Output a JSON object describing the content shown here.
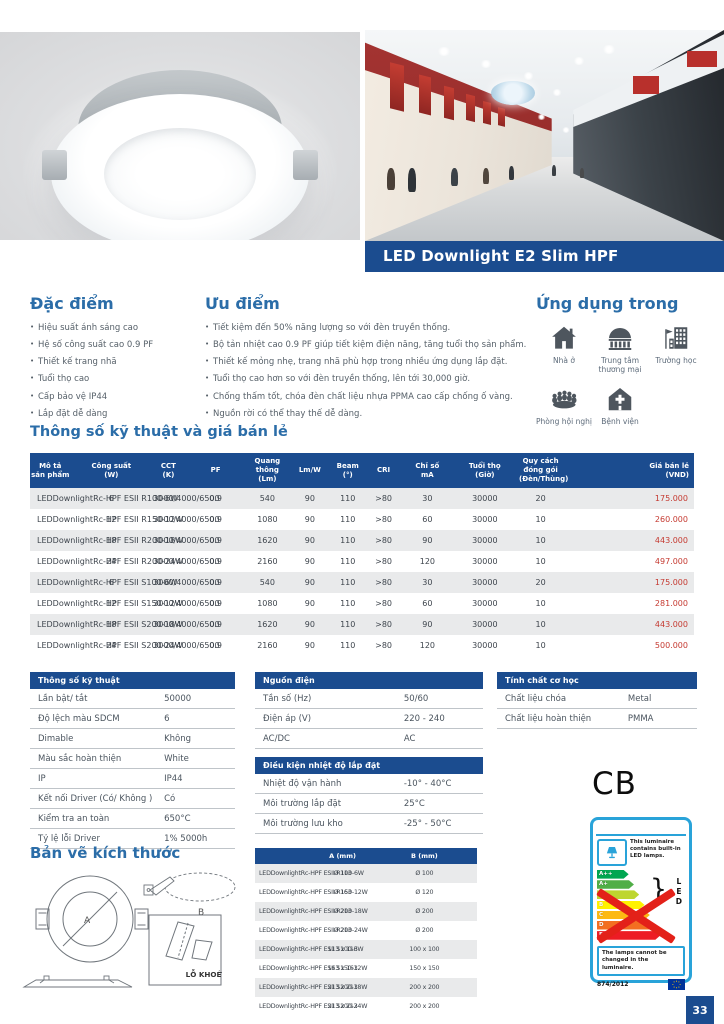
{
  "colors": {
    "navy": "#1b4c8f",
    "heading_blue": "#2b6da8",
    "price_red": "#c53a31",
    "label_blue": "#29a3d9"
  },
  "page": {
    "number": "33"
  },
  "hero": {
    "banner_title": "LED Downlight E2 Slim HPF"
  },
  "features": {
    "title": "Đặc điểm",
    "items": [
      "Hiệu suất ánh sáng cao",
      "Hệ số công suất cao 0.9 PF",
      "Thiết kế trang nhã",
      "Tuổi thọ cao",
      "Cấp bảo vệ IP44",
      "Lắp đặt dễ dàng"
    ]
  },
  "advantages": {
    "title": "Ưu điểm",
    "items": [
      "Tiết kiệm đến 50% năng lượng so với đèn truyền thống.",
      "Bộ tản nhiệt cao 0.9 PF giúp tiết kiệm điện năng, tăng tuổi thọ sản phẩm.",
      "Thiết kế mỏng nhẹ, trang nhã phù hợp trong nhiều ứng dụng lắp đặt.",
      "Tuổi thọ cao hơn so với đèn truyền thống, lên tới 30,000 giờ.",
      "Chống thấm tốt, chóa đèn chất liệu nhựa PPMA cao cấp chống ố vàng.",
      "Nguồn rời có thể thay thế dễ dàng."
    ]
  },
  "applications": {
    "title": "Ứng dụng trong",
    "items": [
      {
        "label": "Nhà ở",
        "icon": "house-icon"
      },
      {
        "label": "Trung tâm thương mại",
        "icon": "mall-icon"
      },
      {
        "label": "Trường học",
        "icon": "school-icon"
      },
      {
        "label": "Phòng hội nghị",
        "icon": "conference-icon"
      },
      {
        "label": "Bệnh viện",
        "icon": "hospital-icon"
      }
    ]
  },
  "spec_price": {
    "title": "Thông số kỹ thuật và giá bán lẻ",
    "headers": [
      "Mô tả sản phẩm",
      "Công suất\n(W)",
      "CCT\n(K)",
      "PF",
      "Quang thông\n(Lm)",
      "Lm/W",
      "Beam\n(°)",
      "CRI",
      "Chỉ số\nmA",
      "Tuổi thọ\n(Giờ)",
      "Quy cách đóng gói\n(Đèn/Thùng)",
      "Giá bán lẻ\n(VND)"
    ],
    "rows": [
      {
        "desc": "LEDDownlightRc-HPF ESII R100-6W",
        "watt": "6",
        "cct": "3000/4000/6500",
        "pf": "0.9",
        "lumen": "540",
        "lmw": "90",
        "beam": "110",
        "cri": ">80",
        "ma": "30",
        "hours": "30000",
        "pack": "20",
        "price": "175.000"
      },
      {
        "desc": "LEDDownlightRc-HPF ESII R150-12W",
        "watt": "12",
        "cct": "3000/4000/6500",
        "pf": "0.9",
        "lumen": "1080",
        "lmw": "90",
        "beam": "110",
        "cri": ">80",
        "ma": "60",
        "hours": "30000",
        "pack": "10",
        "price": "260.000"
      },
      {
        "desc": "LEDDownlightRc-HPF ESII R200-18W",
        "watt": "18",
        "cct": "3000/4000/6500",
        "pf": "0.9",
        "lumen": "1620",
        "lmw": "90",
        "beam": "110",
        "cri": ">80",
        "ma": "90",
        "hours": "30000",
        "pack": "10",
        "price": "443.000"
      },
      {
        "desc": "LEDDownlightRc-HPF ESII R200-24W",
        "watt": "24",
        "cct": "3000/4000/6500",
        "pf": "0.9",
        "lumen": "2160",
        "lmw": "90",
        "beam": "110",
        "cri": ">80",
        "ma": "120",
        "hours": "30000",
        "pack": "10",
        "price": "497.000"
      },
      {
        "desc": "LEDDownlightRc-HPF ESII S100-6W",
        "watt": "6",
        "cct": "3000/4000/6500",
        "pf": "0.9",
        "lumen": "540",
        "lmw": "90",
        "beam": "110",
        "cri": ">80",
        "ma": "30",
        "hours": "30000",
        "pack": "20",
        "price": "175.000"
      },
      {
        "desc": "LEDDownlightRc-HPF ESII S150-12W",
        "watt": "12",
        "cct": "3000/4000/6500",
        "pf": "0.9",
        "lumen": "1080",
        "lmw": "90",
        "beam": "110",
        "cri": ">80",
        "ma": "60",
        "hours": "30000",
        "pack": "10",
        "price": "281.000"
      },
      {
        "desc": "LEDDownlightRc-HPF ESII S200-18W",
        "watt": "18",
        "cct": "3000/4000/6500",
        "pf": "0.9",
        "lumen": "1620",
        "lmw": "90",
        "beam": "110",
        "cri": ">80",
        "ma": "90",
        "hours": "30000",
        "pack": "10",
        "price": "443.000"
      },
      {
        "desc": "LEDDownlightRc-HPF ESII S200-24W",
        "watt": "24",
        "cct": "3000/4000/6500",
        "pf": "0.9",
        "lumen": "2160",
        "lmw": "90",
        "beam": "110",
        "cri": ">80",
        "ma": "120",
        "hours": "30000",
        "pack": "10",
        "price": "500.000"
      }
    ]
  },
  "tech_table": {
    "title": "Thông số kỹ thuật",
    "rows": [
      {
        "label": "Lần bật/ tắt",
        "value": "50000"
      },
      {
        "label": "Độ lệch màu SDCM",
        "value": "6"
      },
      {
        "label": "Dimable",
        "value": "Không"
      },
      {
        "label": "Màu sắc hoàn thiện",
        "value": "White"
      },
      {
        "label": "IP",
        "value": "IP44"
      },
      {
        "label": "Kết nối Driver (Có/ Không )",
        "value": "Có"
      },
      {
        "label": "Kiểm tra an toàn",
        "value": "650°C"
      },
      {
        "label": "Tỷ lệ lỗi Driver",
        "value": "1% 5000h"
      }
    ]
  },
  "power_table": {
    "title": "Nguồn điện",
    "rows": [
      {
        "label": "Tần số (Hz)",
        "value": "50/60"
      },
      {
        "label": "Điện áp (V)",
        "value": "220 - 240"
      },
      {
        "label": "AC/DC",
        "value": "AC"
      }
    ]
  },
  "temp_table": {
    "title": "Điều kiện nhiệt độ lắp đặt",
    "rows": [
      {
        "label": "Nhiệt độ vận hành",
        "value": "-10° - 40°C"
      },
      {
        "label": "Môi trường lắp đặt",
        "value": "25°C"
      },
      {
        "label": "Môi trường lưu kho",
        "value": "-25° - 50°C"
      }
    ]
  },
  "mech_table": {
    "title": "Tính chất cơ học",
    "rows": [
      {
        "label": "Chất liệu chóa",
        "value": "Metal"
      },
      {
        "label": "Chất liệu hoàn thiện",
        "value": "PMMA"
      }
    ]
  },
  "dimensions": {
    "title": "Bản vẽ kích thước",
    "headers": [
      "",
      "A (mm)",
      "B (mm)"
    ],
    "label_a": "A",
    "label_b": "B",
    "cutout_label": "LỖ KHOÉT",
    "rows": [
      {
        "name": "LEDDownlightRc-HPF ESII R100-6W",
        "a": "Ø 113",
        "b": "Ø 100"
      },
      {
        "name": "LEDDownlightRc-HPF ESII R150-12W",
        "a": "Ø 163",
        "b": "Ø 120"
      },
      {
        "name": "LEDDownlightRc-HPF ESII R200-18W",
        "a": "Ø 213",
        "b": "Ø 200"
      },
      {
        "name": "LEDDownlightRc-HPF ESII R200-24W",
        "a": "Ø 213",
        "b": "Ø 200"
      },
      {
        "name": "LEDDownlightRc-HPF ESII S100-6W",
        "a": "113 x 113",
        "b": "100 x 100"
      },
      {
        "name": "LEDDownlightRc-HPF ESII S150-12W",
        "a": "163 x 163",
        "b": "150 x 150"
      },
      {
        "name": "LEDDownlightRc-HPF ESII S200-18W",
        "a": "213 x 213",
        "b": "200 x 200"
      },
      {
        "name": "LEDDownlightRc-HPF ESII S200-24W",
        "a": "213 x 213",
        "b": "200 x 200"
      }
    ]
  },
  "certification": {
    "cb": "CB"
  },
  "energy_label": {
    "top_text": "This luminaire contains built-in LED lamps.",
    "classes": [
      {
        "label": "A++",
        "color": "#00a651",
        "w": "36%"
      },
      {
        "label": "A+",
        "color": "#50ae47",
        "w": "42%"
      },
      {
        "label": "A",
        "color": "#bed62f",
        "w": "48%"
      },
      {
        "label": "B",
        "color": "#fff200",
        "w": "54%"
      },
      {
        "label": "C",
        "color": "#fdb913",
        "w": "60%"
      },
      {
        "label": "D",
        "color": "#f36f21",
        "w": "66%"
      },
      {
        "label": "E",
        "color": "#ed1c24",
        "w": "72%"
      }
    ],
    "brace": "}",
    "led_text": "L\nE\nD",
    "bottom_text": "The lamps cannot be changed in the luminaire.",
    "regulation": "874/2012"
  }
}
